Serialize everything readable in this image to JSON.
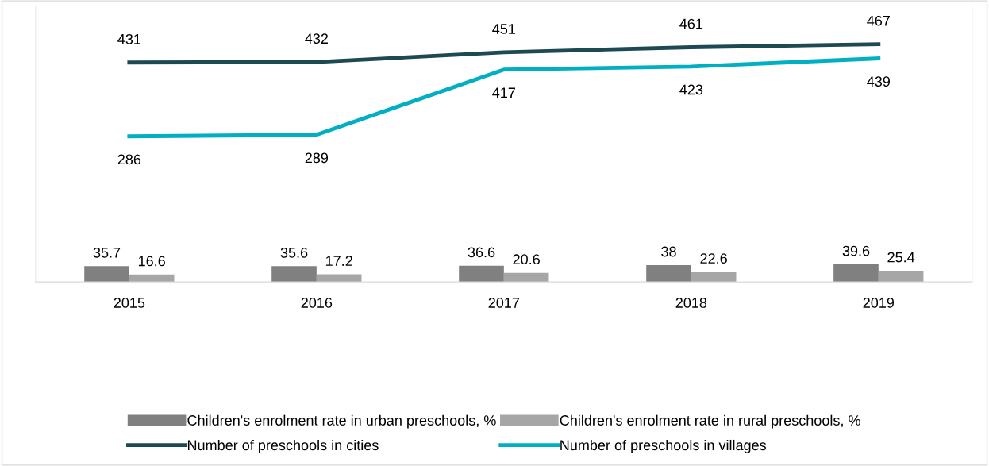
{
  "chart_data": {
    "type": "bar",
    "categories": [
      "2015",
      "2016",
      "2017",
      "2018",
      "2019"
    ],
    "series": [
      {
        "name": "Children's enrolment rate in urban preschools, %",
        "color": "#808080",
        "values": [
          35.7,
          35.6,
          36.6,
          38,
          39.6
        ]
      },
      {
        "name": "Children's enrolment rate in rural preschools, %",
        "color": "#a6a6a6",
        "values": [
          16.6,
          17.2,
          20.6,
          22.6,
          25.4
        ]
      },
      {
        "name": "Number of preschools in cities",
        "type": "line",
        "axis": "y2",
        "color": "#1d4a52",
        "values": [
          431,
          432,
          451,
          461,
          467
        ]
      },
      {
        "name": "Number of preschools in villages",
        "type": "line",
        "axis": "y2",
        "color": "#00afc1",
        "values": [
          286,
          289,
          417,
          423,
          439
        ]
      }
    ],
    "ylim": [
      0,
      620
    ],
    "y2lim": [
      0,
      540
    ],
    "tick_labels": "x",
    "data_labels": true,
    "legend": "bottom",
    "grid": false,
    "marker": "none",
    "line_style": "solid"
  }
}
